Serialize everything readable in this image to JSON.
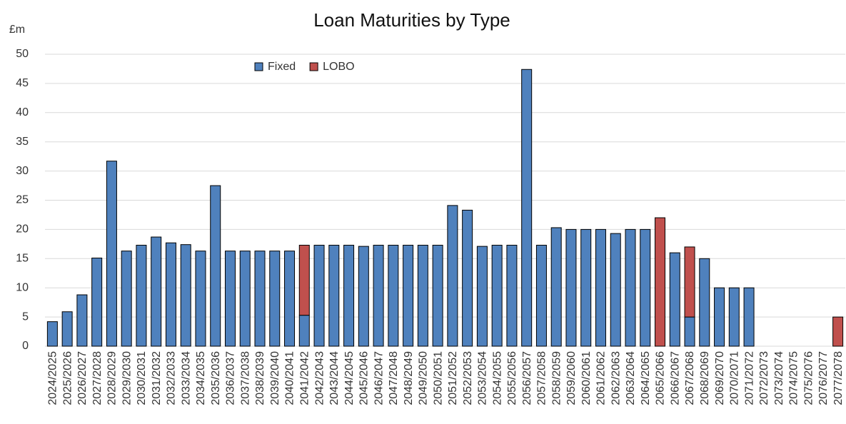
{
  "chart_data": {
    "type": "stacked_bar",
    "title": "Loan Maturities by Type",
    "y_label": "£m",
    "categories": [
      "2024/2025",
      "2025/2026",
      "2026/2027",
      "2027/2028",
      "2028/2029",
      "2029/2030",
      "2030/2031",
      "2031/2032",
      "2032/2033",
      "2033/2034",
      "2034/2035",
      "2035/2036",
      "2036/2037",
      "2037/2038",
      "2038/2039",
      "2039/2040",
      "2040/2041",
      "2041/2042",
      "2042/2043",
      "2043/2044",
      "2044/2045",
      "2045/2046",
      "2046/2047",
      "2047/2048",
      "2048/2049",
      "2049/2050",
      "2050/2051",
      "2051/2052",
      "2052/2053",
      "2053/2054",
      "2054/2055",
      "2055/2056",
      "2056/2057",
      "2057/2058",
      "2058/2059",
      "2059/2060",
      "2060/2061",
      "2061/2062",
      "2062/2063",
      "2063/2064",
      "2064/2065",
      "2065/2066",
      "2066/2067",
      "2067/2068",
      "2068/2069",
      "2069/2070",
      "2070/2071",
      "2071/2072",
      "2072/2073",
      "2073/2074",
      "2074/2075",
      "2075/2076",
      "2076/2077",
      "2077/2078"
    ],
    "series": [
      {
        "name": "Fixed",
        "color": "#4f81bd",
        "values": [
          4.2,
          5.9,
          8.8,
          15.1,
          31.7,
          16.3,
          17.3,
          18.7,
          17.7,
          17.4,
          16.3,
          27.5,
          16.3,
          16.3,
          16.3,
          16.3,
          16.3,
          5.3,
          17.3,
          17.3,
          17.3,
          17.1,
          17.3,
          17.3,
          17.3,
          17.3,
          17.3,
          24.1,
          23.3,
          17.1,
          17.3,
          17.3,
          47.4,
          17.3,
          20.3,
          20.0,
          20.0,
          20.0,
          19.3,
          20.0,
          20.0,
          0,
          16.0,
          5.0,
          15.0,
          10.0,
          10.0,
          10.0,
          0,
          0,
          0,
          0,
          0,
          0
        ]
      },
      {
        "name": "LOBO",
        "color": "#c0504d",
        "values": [
          0,
          0,
          0,
          0,
          0,
          0,
          0,
          0,
          0,
          0,
          0,
          0,
          0,
          0,
          0,
          0,
          0,
          12.0,
          0,
          0,
          0,
          0,
          0,
          0,
          0,
          0,
          0,
          0,
          0,
          0,
          0,
          0,
          0,
          0,
          0,
          0,
          0,
          0,
          0,
          0,
          0,
          22.0,
          0,
          12.0,
          0,
          0,
          0,
          0,
          0,
          0,
          0,
          0,
          0,
          5.0
        ]
      }
    ],
    "ylim": [
      0,
      50
    ],
    "yticks": [
      0,
      5,
      10,
      15,
      20,
      25,
      30,
      35,
      40,
      45,
      50
    ],
    "grid": true
  }
}
